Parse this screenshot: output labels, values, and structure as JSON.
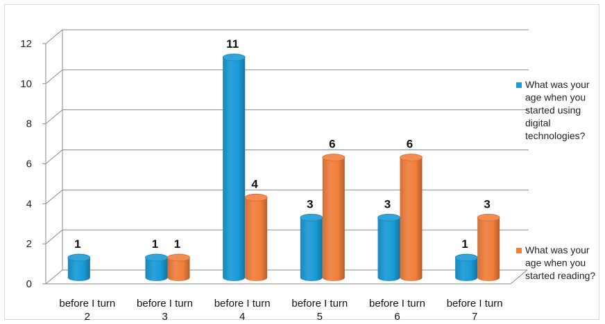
{
  "chart_data": {
    "type": "bar",
    "subtype": "3d-cylinder",
    "title": "",
    "xlabel": "",
    "ylabel": "",
    "ylim": [
      0,
      12
    ],
    "yticks": [
      0,
      2,
      4,
      6,
      8,
      10,
      12
    ],
    "grid": true,
    "legend_position": "right",
    "categories": [
      [
        "before I turn",
        "2"
      ],
      [
        "before I turn",
        "3"
      ],
      [
        "before I turn",
        "4"
      ],
      [
        "before I turn",
        "5"
      ],
      [
        "before I turn",
        "6"
      ],
      [
        "before I turn",
        "7"
      ]
    ],
    "series": [
      {
        "name": [
          "What was your",
          "age when you",
          "started using",
          "digital",
          "technologies?"
        ],
        "color": "#1a9ad6",
        "values": [
          1,
          1,
          11,
          3,
          3,
          1
        ]
      },
      {
        "name": [
          "What was your",
          "age when you",
          "started reading?"
        ],
        "color": "#f07f3c",
        "values": [
          null,
          1,
          4,
          6,
          6,
          3
        ]
      }
    ]
  }
}
